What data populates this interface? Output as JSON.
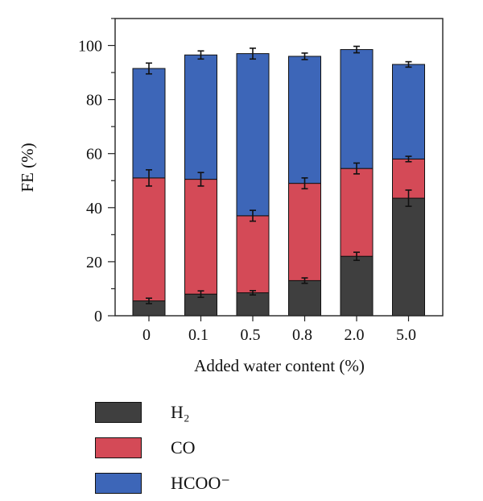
{
  "chart_data": {
    "type": "bar",
    "stacked": true,
    "categories": [
      "0",
      "0.1",
      "0.5",
      "0.8",
      "2.0",
      "5.0"
    ],
    "series": [
      {
        "name": "H₂",
        "color": "#3f3f3f",
        "values": [
          5.5,
          8,
          8.5,
          13,
          22,
          43.5
        ],
        "errors": [
          1,
          1.2,
          0.8,
          1,
          1.5,
          3
        ]
      },
      {
        "name": "CO",
        "color": "#d44a57",
        "values": [
          45.5,
          42.5,
          28.5,
          36,
          32.5,
          14.5
        ],
        "errors": [
          3,
          2.5,
          2,
          2,
          2,
          1
        ]
      },
      {
        "name": "HCOO⁻",
        "color": "#3d66b8",
        "values": [
          40.5,
          46,
          60,
          47,
          44,
          35
        ],
        "errors": [
          2,
          1.5,
          2,
          1.2,
          1.2,
          1
        ]
      }
    ],
    "xlabel": "Added water content (%)",
    "ylabel": "FE (%)",
    "ylim": [
      0,
      110
    ],
    "yticks": [
      "0",
      "20",
      "40",
      "60",
      "80",
      "100"
    ],
    "grid": false,
    "legend_position": "bottom-left"
  }
}
